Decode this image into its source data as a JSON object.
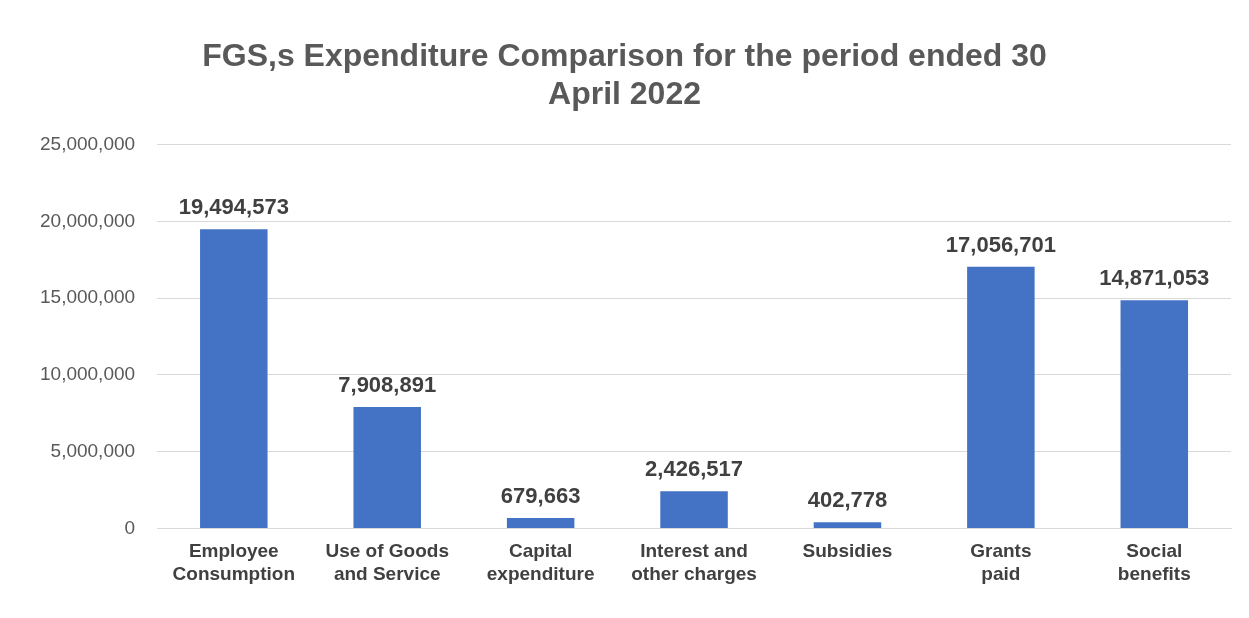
{
  "chart_data": {
    "type": "bar",
    "title": "FGS,s Expenditure Comparison for the period ended 30 April 2022",
    "categories": [
      "Employee Consumption",
      "Use of Goods and Service",
      "Capital expenditure",
      "Interest and other charges",
      "Subsidies",
      "Grants paid",
      "Social benefits"
    ],
    "values": [
      19494573,
      7908891,
      679663,
      2426517,
      402778,
      17056701,
      14871053
    ],
    "value_labels": [
      "19,494,573",
      "7,908,891",
      "679,663",
      "2,426,517",
      "402,778",
      "17,056,701",
      "14,871,053"
    ],
    "color": "#4472c4",
    "ylim": [
      0,
      25000000
    ],
    "yticks": [
      {
        "value": 0,
        "label": "0"
      },
      {
        "value": 5000000,
        "label": "5,000,000"
      },
      {
        "value": 10000000,
        "label": "10,000,000"
      },
      {
        "value": 15000000,
        "label": "15,000,000"
      },
      {
        "value": 20000000,
        "label": "20,000,000"
      },
      {
        "value": 25000000,
        "label": "25,000,000"
      }
    ],
    "grid": "y"
  }
}
